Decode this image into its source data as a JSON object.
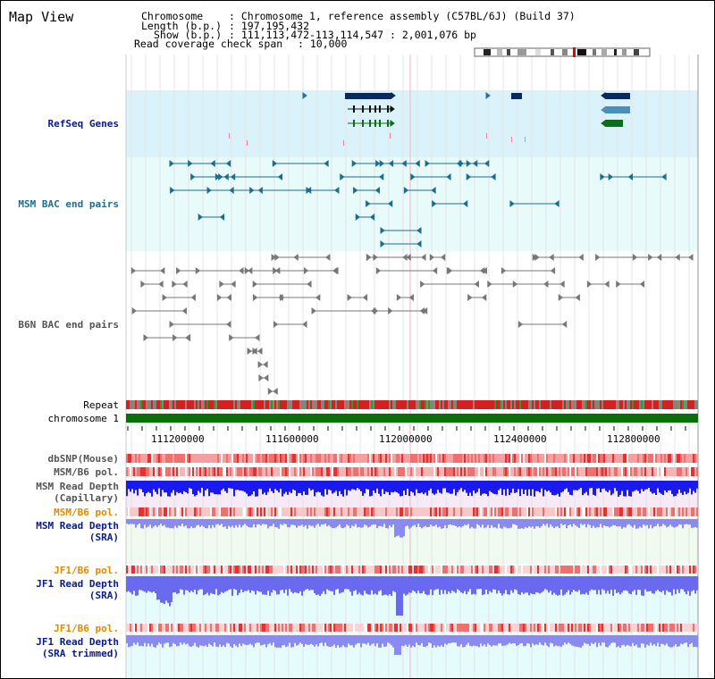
{
  "header": {
    "title": "Map View",
    "chromosome_key": "Chromosome",
    "chromosome_value": ": Chromosome 1, reference assembly (C57BL/6J) (Build 37)",
    "length_key": "Length (b.p.)",
    "length_value": ": 197,195,432",
    "show_key": "Show (b.p.)",
    "show_value": ": 111,113,472-113,114,547 : 2,001,076 bp",
    "coverage_key": "Read coverage check span",
    "coverage_value": ": 10,000"
  },
  "tracks": {
    "refseq": "RefSeq Genes",
    "msm_bac": "MSM BAC end pairs",
    "b6n_bac": "B6N BAC end pairs",
    "repeat": "Repeat",
    "chromosome": "chromosome 1",
    "dbsnp": "dbSNP(Mouse)",
    "msm_b6_pol": "MSM/B6 pol.",
    "msm_depth_cap_1": "MSM Read Depth",
    "msm_depth_cap_2": "(Capillary)",
    "msm_b6_pol_2": "MSM/B6 pol.",
    "msm_depth_sra_1": "MSM Read Depth",
    "msm_depth_sra_2": "(SRA)",
    "jf1_b6_pol": "JF1/B6 pol.",
    "jf1_depth_sra_1": "JF1 Read Depth",
    "jf1_depth_sra_2": "(SRA)",
    "jf1_b6_pol_2": "JF1/B6 pol.",
    "jf1_depth_trim_1": "JF1 Read Depth",
    "jf1_depth_trim_2": "(SRA trimmed)"
  },
  "axis": {
    "ticks": [
      "111200000",
      "111600000",
      "112000000",
      "112400000",
      "112800000"
    ]
  },
  "colors": {
    "refseq_bg": "#dcf2fb",
    "msm_bg": "#e9fafa",
    "gene_navy": "#0a2a5c",
    "gene_steel": "#4a90b8",
    "gene_green": "#0a6e1a",
    "bac_msm": "#1a6f8f",
    "bac_b6n": "#777777",
    "chromosome_bar": "#0a6e0a",
    "depth_blue": "#1a1aee",
    "depth_light": "#8a8af0",
    "pol_red": "#e83030"
  }
}
